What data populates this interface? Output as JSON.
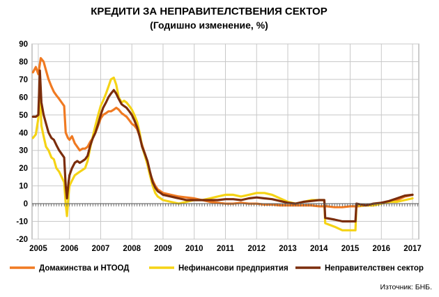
{
  "chart_data": {
    "type": "line",
    "title": "КРЕДИТИ ЗА НЕПРАВИТЕЛСТВЕНИЯ СЕКТОР",
    "subtitle": "(Годишно изменение, %)",
    "source": "Източник: БНБ.",
    "ylim": [
      -20,
      90
    ],
    "yticks": [
      -20,
      -10,
      0,
      10,
      20,
      30,
      40,
      50,
      60,
      70,
      80,
      90
    ],
    "xlim": [
      2004.8,
      2017.2
    ],
    "xticks": [
      2005,
      2006,
      2007,
      2008,
      2009,
      2010,
      2011,
      2012,
      2013,
      2014,
      2015,
      2016,
      2017
    ],
    "xticklabels": [
      "2005",
      "2006",
      "2007",
      "2008",
      "2009",
      "2010",
      "2011",
      "2012",
      "2013",
      "2014",
      "2015",
      "2016",
      "2017"
    ],
    "grid": true,
    "legend_position": "bottom",
    "colors": {
      "households": "#F07A22",
      "nonfinancial": "#F5D315",
      "nongovernment": "#7B2D0C",
      "grid": "#C8C8C8"
    },
    "series": [
      {
        "name": "Домакинства и НТООД",
        "color": "#F07A22",
        "points": [
          [
            2004.83,
            74
          ],
          [
            2004.92,
            77
          ],
          [
            2005.0,
            73
          ],
          [
            2005.08,
            82
          ],
          [
            2005.17,
            80
          ],
          [
            2005.25,
            75
          ],
          [
            2005.33,
            70
          ],
          [
            2005.42,
            66
          ],
          [
            2005.5,
            63
          ],
          [
            2005.58,
            61
          ],
          [
            2005.67,
            59
          ],
          [
            2005.75,
            57
          ],
          [
            2005.83,
            55
          ],
          [
            2005.88,
            40
          ],
          [
            2005.95,
            37
          ],
          [
            2006.0,
            36
          ],
          [
            2006.08,
            38
          ],
          [
            2006.17,
            34
          ],
          [
            2006.25,
            32
          ],
          [
            2006.33,
            30
          ],
          [
            2006.42,
            31
          ],
          [
            2006.5,
            31
          ],
          [
            2006.58,
            32
          ],
          [
            2006.67,
            35
          ],
          [
            2006.75,
            37
          ],
          [
            2006.83,
            40
          ],
          [
            2006.92,
            44
          ],
          [
            2007.0,
            48
          ],
          [
            2007.08,
            50
          ],
          [
            2007.17,
            51
          ],
          [
            2007.25,
            52
          ],
          [
            2007.33,
            52
          ],
          [
            2007.42,
            53
          ],
          [
            2007.5,
            54
          ],
          [
            2007.58,
            53
          ],
          [
            2007.67,
            51
          ],
          [
            2007.75,
            50
          ],
          [
            2007.83,
            49
          ],
          [
            2007.92,
            47
          ],
          [
            2008.0,
            45
          ],
          [
            2008.08,
            44
          ],
          [
            2008.17,
            42
          ],
          [
            2008.25,
            38
          ],
          [
            2008.33,
            33
          ],
          [
            2008.42,
            28
          ],
          [
            2008.5,
            23
          ],
          [
            2008.58,
            17
          ],
          [
            2008.67,
            13
          ],
          [
            2008.75,
            10
          ],
          [
            2008.83,
            8
          ],
          [
            2008.92,
            7
          ],
          [
            2009.0,
            6
          ],
          [
            2009.25,
            5
          ],
          [
            2009.5,
            4
          ],
          [
            2009.75,
            3.5
          ],
          [
            2010.0,
            3
          ],
          [
            2010.25,
            2
          ],
          [
            2010.5,
            1
          ],
          [
            2010.75,
            0.5
          ],
          [
            2011.0,
            0
          ],
          [
            2011.25,
            0
          ],
          [
            2011.5,
            0.5
          ],
          [
            2011.75,
            0
          ],
          [
            2012.0,
            0
          ],
          [
            2012.25,
            -0.5
          ],
          [
            2012.5,
            -0.5
          ],
          [
            2012.75,
            -1
          ],
          [
            2013.0,
            -1
          ],
          [
            2013.25,
            -1
          ],
          [
            2013.5,
            -1
          ],
          [
            2013.75,
            -1
          ],
          [
            2014.0,
            -1.5
          ],
          [
            2014.25,
            -1.5
          ],
          [
            2014.5,
            -2
          ],
          [
            2014.75,
            -2
          ],
          [
            2015.0,
            -1.5
          ],
          [
            2015.25,
            -1.5
          ],
          [
            2015.5,
            -1
          ],
          [
            2015.75,
            -1
          ],
          [
            2016.0,
            0
          ],
          [
            2016.25,
            1
          ],
          [
            2016.5,
            2
          ],
          [
            2016.75,
            4
          ],
          [
            2017.0,
            5
          ]
        ]
      },
      {
        "name": "Нефинансови предприятия",
        "color": "#F5D315",
        "points": [
          [
            2004.83,
            37
          ],
          [
            2004.92,
            39
          ],
          [
            2005.0,
            48
          ],
          [
            2005.05,
            64
          ],
          [
            2005.1,
            44
          ],
          [
            2005.17,
            38
          ],
          [
            2005.25,
            32
          ],
          [
            2005.33,
            30
          ],
          [
            2005.42,
            26
          ],
          [
            2005.5,
            25
          ],
          [
            2005.58,
            20
          ],
          [
            2005.67,
            18
          ],
          [
            2005.75,
            15
          ],
          [
            2005.83,
            12
          ],
          [
            2005.88,
            0
          ],
          [
            2005.92,
            -7
          ],
          [
            2005.97,
            5
          ],
          [
            2006.0,
            10
          ],
          [
            2006.08,
            13
          ],
          [
            2006.17,
            16
          ],
          [
            2006.25,
            17
          ],
          [
            2006.33,
            18
          ],
          [
            2006.42,
            19
          ],
          [
            2006.5,
            20
          ],
          [
            2006.58,
            24
          ],
          [
            2006.67,
            32
          ],
          [
            2006.75,
            38
          ],
          [
            2006.83,
            44
          ],
          [
            2006.92,
            50
          ],
          [
            2007.0,
            55
          ],
          [
            2007.08,
            58
          ],
          [
            2007.17,
            62
          ],
          [
            2007.25,
            66
          ],
          [
            2007.33,
            70
          ],
          [
            2007.42,
            71
          ],
          [
            2007.5,
            67
          ],
          [
            2007.58,
            60
          ],
          [
            2007.67,
            57
          ],
          [
            2007.75,
            58
          ],
          [
            2007.83,
            57
          ],
          [
            2007.92,
            55
          ],
          [
            2008.0,
            53
          ],
          [
            2008.08,
            50
          ],
          [
            2008.17,
            46
          ],
          [
            2008.25,
            40
          ],
          [
            2008.33,
            32
          ],
          [
            2008.42,
            27
          ],
          [
            2008.5,
            22
          ],
          [
            2008.58,
            16
          ],
          [
            2008.67,
            10
          ],
          [
            2008.75,
            6
          ],
          [
            2008.83,
            4
          ],
          [
            2008.92,
            3
          ],
          [
            2009.0,
            2
          ],
          [
            2009.25,
            1
          ],
          [
            2009.5,
            0
          ],
          [
            2009.75,
            1
          ],
          [
            2010.0,
            2
          ],
          [
            2010.25,
            2
          ],
          [
            2010.5,
            3
          ],
          [
            2010.75,
            4
          ],
          [
            2011.0,
            5
          ],
          [
            2011.25,
            5
          ],
          [
            2011.5,
            4
          ],
          [
            2011.75,
            5
          ],
          [
            2012.0,
            6
          ],
          [
            2012.25,
            6
          ],
          [
            2012.5,
            5
          ],
          [
            2012.75,
            3
          ],
          [
            2013.0,
            1
          ],
          [
            2013.25,
            0
          ],
          [
            2013.5,
            1
          ],
          [
            2013.75,
            2
          ],
          [
            2014.0,
            2
          ],
          [
            2014.17,
            2
          ],
          [
            2014.2,
            -11
          ],
          [
            2014.5,
            -13
          ],
          [
            2014.75,
            -15
          ],
          [
            2015.0,
            -15
          ],
          [
            2015.17,
            -15
          ],
          [
            2015.2,
            -1
          ],
          [
            2015.5,
            -1
          ],
          [
            2015.75,
            -1
          ],
          [
            2016.0,
            0
          ],
          [
            2016.25,
            1
          ],
          [
            2016.5,
            1
          ],
          [
            2016.75,
            2
          ],
          [
            2017.0,
            3
          ]
        ]
      },
      {
        "name": "Неправителствен сектор",
        "color": "#7B2D0C",
        "points": [
          [
            2004.83,
            49
          ],
          [
            2004.92,
            49
          ],
          [
            2005.0,
            50
          ],
          [
            2005.05,
            75
          ],
          [
            2005.1,
            57
          ],
          [
            2005.17,
            50
          ],
          [
            2005.25,
            45
          ],
          [
            2005.33,
            40
          ],
          [
            2005.42,
            37
          ],
          [
            2005.5,
            36
          ],
          [
            2005.58,
            33
          ],
          [
            2005.67,
            30
          ],
          [
            2005.75,
            28
          ],
          [
            2005.83,
            26
          ],
          [
            2005.88,
            10
          ],
          [
            2005.92,
            3
          ],
          [
            2005.97,
            12
          ],
          [
            2006.0,
            16
          ],
          [
            2006.08,
            20
          ],
          [
            2006.17,
            23
          ],
          [
            2006.25,
            24
          ],
          [
            2006.33,
            23
          ],
          [
            2006.42,
            24
          ],
          [
            2006.5,
            25
          ],
          [
            2006.58,
            27
          ],
          [
            2006.67,
            33
          ],
          [
            2006.75,
            37
          ],
          [
            2006.83,
            40
          ],
          [
            2006.92,
            45
          ],
          [
            2007.0,
            50
          ],
          [
            2007.08,
            54
          ],
          [
            2007.17,
            57
          ],
          [
            2007.25,
            60
          ],
          [
            2007.33,
            62
          ],
          [
            2007.42,
            64
          ],
          [
            2007.5,
            62
          ],
          [
            2007.58,
            59
          ],
          [
            2007.67,
            56
          ],
          [
            2007.75,
            55
          ],
          [
            2007.83,
            54
          ],
          [
            2007.92,
            52
          ],
          [
            2008.0,
            50
          ],
          [
            2008.08,
            47
          ],
          [
            2008.17,
            43
          ],
          [
            2008.25,
            38
          ],
          [
            2008.33,
            32
          ],
          [
            2008.42,
            28
          ],
          [
            2008.5,
            24
          ],
          [
            2008.58,
            18
          ],
          [
            2008.67,
            12
          ],
          [
            2008.75,
            9
          ],
          [
            2008.83,
            7
          ],
          [
            2008.92,
            6
          ],
          [
            2009.0,
            5
          ],
          [
            2009.25,
            4
          ],
          [
            2009.5,
            3
          ],
          [
            2009.75,
            2
          ],
          [
            2010.0,
            2
          ],
          [
            2010.25,
            2
          ],
          [
            2010.5,
            2
          ],
          [
            2010.75,
            2
          ],
          [
            2011.0,
            2.5
          ],
          [
            2011.25,
            2.5
          ],
          [
            2011.5,
            2
          ],
          [
            2011.75,
            3
          ],
          [
            2012.0,
            3.5
          ],
          [
            2012.25,
            3
          ],
          [
            2012.5,
            2.5
          ],
          [
            2012.75,
            1.5
          ],
          [
            2013.0,
            0.5
          ],
          [
            2013.25,
            0
          ],
          [
            2013.5,
            1
          ],
          [
            2013.75,
            1.5
          ],
          [
            2014.0,
            2
          ],
          [
            2014.17,
            2
          ],
          [
            2014.2,
            -8
          ],
          [
            2014.5,
            -9
          ],
          [
            2014.75,
            -10
          ],
          [
            2015.0,
            -10
          ],
          [
            2015.17,
            -10
          ],
          [
            2015.2,
            0
          ],
          [
            2015.5,
            -1
          ],
          [
            2015.75,
            0
          ],
          [
            2016.0,
            0.5
          ],
          [
            2016.25,
            1.5
          ],
          [
            2016.5,
            3
          ],
          [
            2016.75,
            4.5
          ],
          [
            2017.0,
            5
          ]
        ]
      }
    ]
  }
}
